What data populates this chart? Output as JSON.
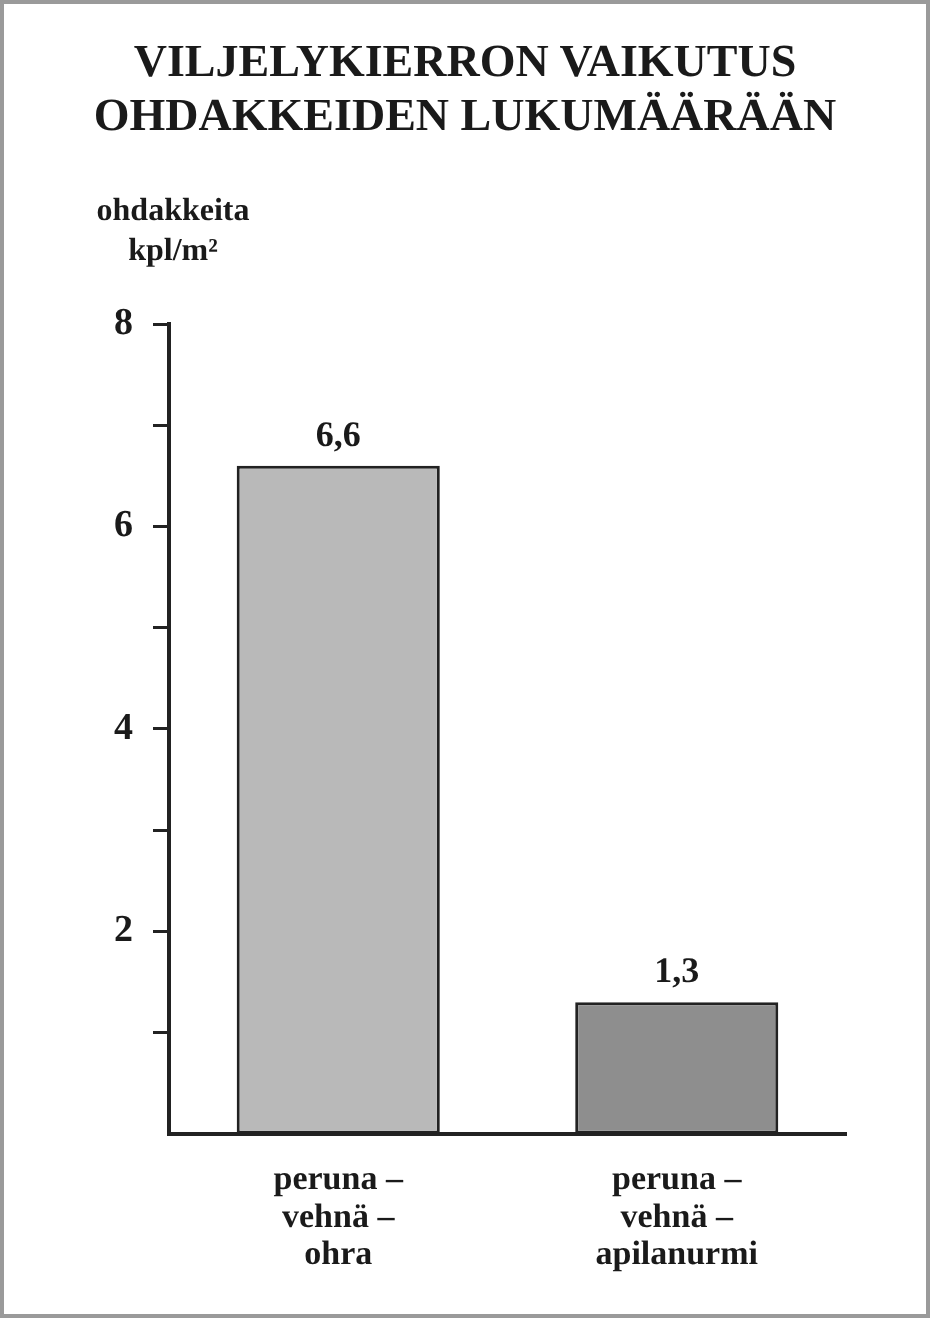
{
  "chart_data": {
    "type": "bar",
    "title": "VILJELYKIERRON VAIKUTUS OHDAKKEIDEN LUKUMÄÄRÄÄN",
    "ylabel": "ohdakkeita kpl/m²",
    "categories": [
      "peruna – vehnä – ohra",
      "peruna – vehnä – apilanurmi"
    ],
    "values": [
      6.6,
      1.3
    ],
    "colors": [
      "#b9b9b9",
      "#8e8e8e"
    ],
    "value_labels": [
      "6,6",
      "1,3"
    ],
    "ylim": [
      0,
      8
    ],
    "yticks": [
      {
        "value": 1,
        "label": null
      },
      2,
      {
        "value": 3,
        "label": null
      },
      4,
      {
        "value": 5,
        "label": null
      },
      6,
      {
        "value": 7,
        "label": null
      },
      8
    ],
    "grid": false,
    "legend": false
  }
}
